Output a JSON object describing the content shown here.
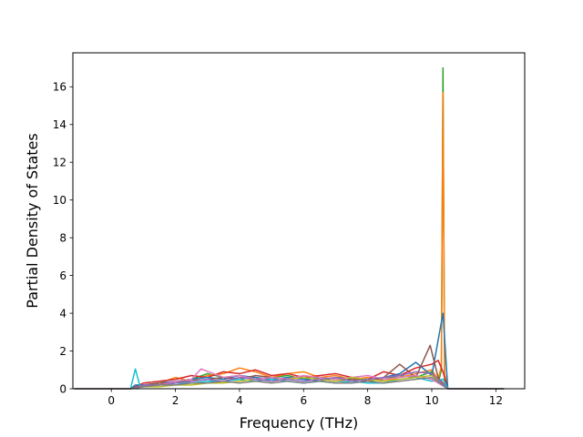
{
  "chart_data": {
    "type": "line",
    "title": "",
    "xlabel": "Frequency (THz)",
    "ylabel": "Partial Density of States",
    "xlim": [
      -1.2,
      12.9
    ],
    "ylim": [
      0,
      17.8
    ],
    "xticks": [
      0,
      2,
      4,
      6,
      8,
      10,
      12
    ],
    "yticks": [
      0,
      2,
      4,
      6,
      8,
      10,
      12,
      14,
      16
    ],
    "grid": false,
    "legend": "none",
    "frequency_range": [
      -1.15,
      12.25
    ],
    "colors": [
      "#1f77b4",
      "#ff7f0e",
      "#2ca02c",
      "#d62728",
      "#9467bd",
      "#8c564b",
      "#e377c2",
      "#7f7f7f",
      "#bcbd22",
      "#17becf"
    ],
    "series": [
      {
        "color": "#2ca02c",
        "x": [
          -1.15,
          0.6,
          0.75,
          1.0,
          1.5,
          2.0,
          2.5,
          3.0,
          3.5,
          4.0,
          4.5,
          5.0,
          5.5,
          6.0,
          6.5,
          7.0,
          7.5,
          8.0,
          8.5,
          9.0,
          9.5,
          10.0,
          10.2,
          10.3,
          10.35,
          10.4,
          10.5,
          12.25
        ],
        "y": [
          0,
          0,
          0.1,
          0.15,
          0.2,
          0.3,
          0.5,
          0.8,
          0.6,
          0.7,
          0.5,
          0.6,
          0.7,
          0.5,
          0.6,
          0.5,
          0.6,
          0.4,
          0.5,
          0.7,
          0.6,
          0.9,
          0.3,
          1.0,
          17.0,
          0.5,
          0,
          0
        ]
      },
      {
        "color": "#ff7f0e",
        "x": [
          -1.15,
          0.6,
          0.75,
          1.0,
          1.5,
          2.0,
          2.5,
          3.0,
          3.5,
          4.0,
          4.5,
          5.0,
          5.5,
          6.0,
          6.5,
          7.0,
          7.5,
          8.0,
          8.5,
          9.0,
          9.5,
          10.0,
          10.2,
          10.3,
          10.35,
          10.4,
          10.5,
          12.25
        ],
        "y": [
          0,
          0,
          0.05,
          0.2,
          0.3,
          0.6,
          0.4,
          0.7,
          0.8,
          1.1,
          0.9,
          0.6,
          0.8,
          0.9,
          0.6,
          0.7,
          0.5,
          0.6,
          0.4,
          0.6,
          0.8,
          1.0,
          0.5,
          1.2,
          15.7,
          0.8,
          0,
          0
        ]
      },
      {
        "color": "#d62728",
        "x": [
          -1.15,
          0.6,
          0.75,
          1.0,
          1.5,
          2.0,
          2.5,
          3.0,
          3.5,
          4.0,
          4.5,
          5.0,
          5.5,
          6.0,
          6.5,
          7.0,
          7.5,
          8.0,
          8.5,
          9.0,
          9.5,
          10.0,
          10.2,
          10.35,
          10.5,
          12.25
        ],
        "y": [
          0,
          0,
          0.1,
          0.3,
          0.4,
          0.5,
          0.7,
          0.6,
          0.9,
          0.8,
          1.0,
          0.7,
          0.8,
          0.6,
          0.7,
          0.8,
          0.6,
          0.5,
          0.9,
          0.7,
          1.1,
          1.3,
          1.5,
          0.9,
          0,
          0
        ]
      },
      {
        "color": "#1f77b4",
        "x": [
          -1.15,
          0.6,
          0.75,
          1.0,
          1.5,
          2.0,
          2.5,
          3.0,
          3.5,
          4.0,
          4.5,
          5.0,
          5.5,
          6.0,
          6.5,
          7.0,
          7.5,
          8.0,
          8.5,
          9.0,
          9.5,
          10.0,
          10.35,
          10.5,
          12.25
        ],
        "y": [
          0,
          0,
          0.2,
          0.2,
          0.3,
          0.4,
          0.5,
          0.6,
          0.5,
          0.7,
          0.6,
          0.5,
          0.6,
          0.5,
          0.4,
          0.6,
          0.5,
          0.4,
          0.6,
          0.8,
          1.4,
          0.7,
          4.0,
          0,
          0
        ]
      },
      {
        "color": "#8c564b",
        "x": [
          -1.15,
          0.6,
          0.75,
          1.0,
          1.5,
          2.0,
          2.5,
          3.0,
          3.5,
          4.0,
          4.5,
          5.0,
          5.5,
          6.0,
          6.5,
          7.0,
          7.5,
          8.0,
          8.5,
          9.0,
          9.5,
          9.95,
          10.2,
          10.5,
          12.25
        ],
        "y": [
          0,
          0,
          0.05,
          0.2,
          0.3,
          0.3,
          0.4,
          0.5,
          0.6,
          0.5,
          0.7,
          0.6,
          0.5,
          0.6,
          0.5,
          0.4,
          0.5,
          0.4,
          0.6,
          1.3,
          0.6,
          2.3,
          0.6,
          0,
          0
        ]
      },
      {
        "color": "#17becf",
        "x": [
          -1.15,
          0.6,
          0.75,
          0.9,
          1.5,
          2.0,
          2.5,
          3.0,
          3.5,
          4.0,
          4.5,
          5.0,
          5.5,
          6.0,
          6.5,
          7.0,
          7.5,
          8.0,
          8.5,
          9.0,
          9.5,
          10.0,
          10.35,
          10.5,
          12.25
        ],
        "y": [
          0,
          0,
          1.05,
          0.1,
          0.2,
          0.3,
          0.3,
          0.4,
          0.4,
          0.5,
          0.4,
          0.5,
          0.4,
          0.3,
          0.4,
          0.3,
          0.4,
          0.3,
          0.3,
          0.5,
          0.6,
          0.4,
          0.5,
          0,
          0
        ]
      },
      {
        "color": "#e377c2",
        "x": [
          -1.15,
          0.6,
          0.75,
          1.0,
          1.5,
          2.0,
          2.5,
          2.8,
          3.5,
          4.0,
          4.5,
          5.0,
          5.5,
          6.0,
          6.5,
          7.0,
          7.5,
          8.0,
          8.5,
          9.0,
          9.5,
          10.0,
          10.5,
          12.25
        ],
        "y": [
          0,
          0,
          0.05,
          0.1,
          0.2,
          0.4,
          0.5,
          1.05,
          0.6,
          0.7,
          0.5,
          0.6,
          0.5,
          0.7,
          0.6,
          0.5,
          0.6,
          0.7,
          0.5,
          0.6,
          0.7,
          0.5,
          0,
          0
        ]
      },
      {
        "color": "#bcbd22",
        "x": [
          -1.15,
          0.6,
          0.75,
          1.0,
          1.5,
          2.0,
          2.5,
          3.0,
          3.5,
          4.0,
          4.5,
          5.0,
          5.5,
          6.0,
          6.5,
          7.0,
          7.5,
          8.0,
          8.5,
          9.0,
          9.5,
          10.0,
          10.5,
          12.25
        ],
        "y": [
          0,
          0,
          0.05,
          0.1,
          0.1,
          0.2,
          0.2,
          0.3,
          0.3,
          0.4,
          0.5,
          0.4,
          0.5,
          0.6,
          0.5,
          0.4,
          0.6,
          0.5,
          0.4,
          0.5,
          0.6,
          0.7,
          0,
          0
        ]
      },
      {
        "color": "#9467bd",
        "x": [
          -1.15,
          0.6,
          0.75,
          1.0,
          1.5,
          2.0,
          2.5,
          3.0,
          3.5,
          4.0,
          4.5,
          5.0,
          5.5,
          6.0,
          6.5,
          7.0,
          7.5,
          8.0,
          8.5,
          9.0,
          9.5,
          10.0,
          10.5,
          12.25
        ],
        "y": [
          0,
          0,
          0.05,
          0.2,
          0.2,
          0.3,
          0.4,
          0.5,
          0.4,
          0.6,
          0.5,
          0.4,
          0.5,
          0.4,
          0.5,
          0.6,
          0.4,
          0.5,
          0.6,
          0.7,
          0.9,
          0.8,
          0,
          0
        ]
      },
      {
        "color": "#7f7f7f",
        "x": [
          -1.15,
          0.6,
          0.75,
          1.0,
          1.5,
          2.0,
          2.5,
          3.0,
          3.5,
          4.0,
          4.5,
          5.0,
          5.5,
          6.0,
          6.5,
          7.0,
          7.5,
          8.0,
          8.5,
          9.0,
          9.5,
          10.0,
          10.5,
          12.25
        ],
        "y": [
          0,
          0,
          0.05,
          0.1,
          0.2,
          0.2,
          0.3,
          0.3,
          0.4,
          0.3,
          0.4,
          0.3,
          0.4,
          0.3,
          0.4,
          0.3,
          0.3,
          0.4,
          0.3,
          0.4,
          0.5,
          0.6,
          0,
          0
        ]
      }
    ]
  }
}
